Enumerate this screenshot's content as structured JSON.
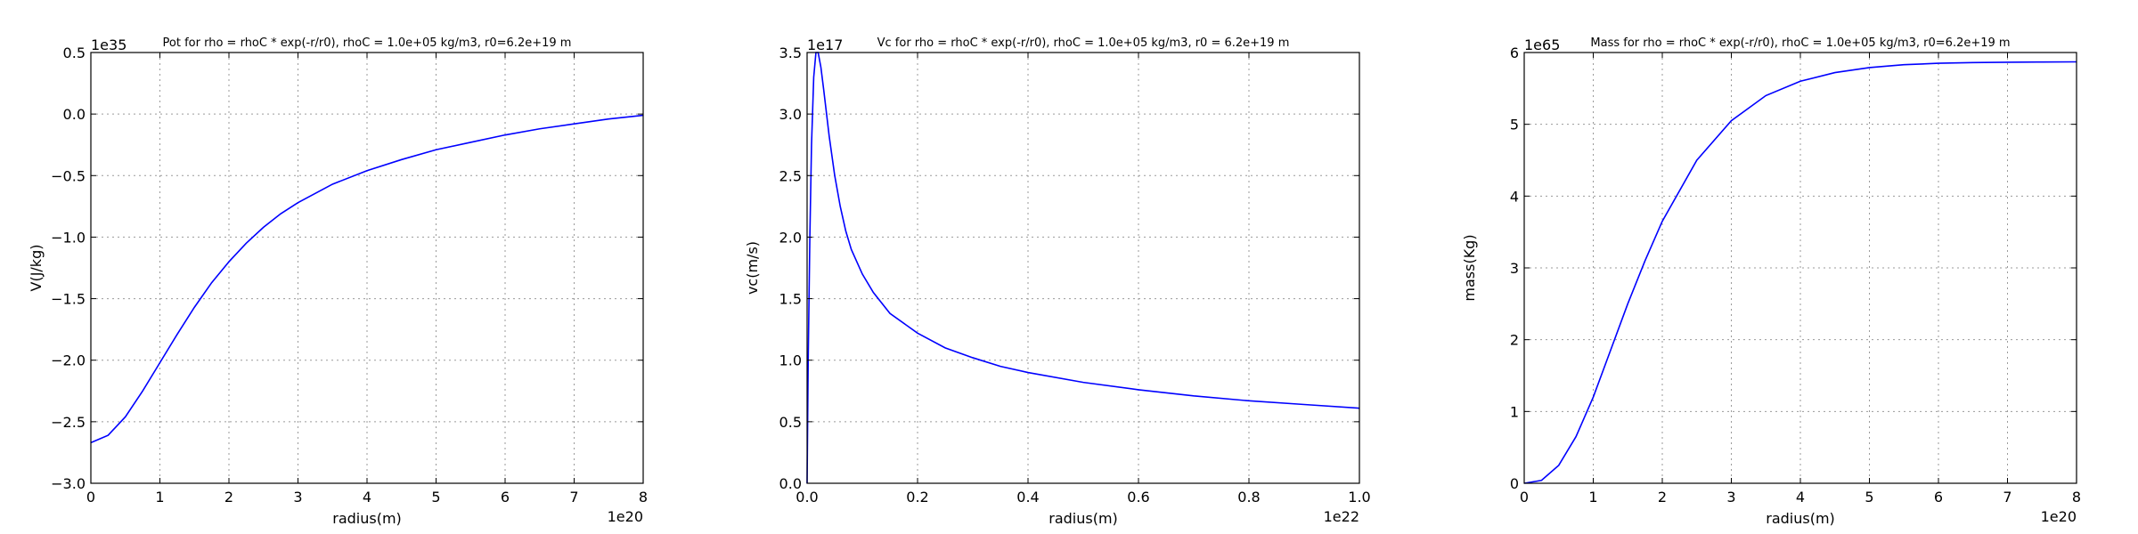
{
  "chart_data": [
    {
      "type": "line",
      "title": "Pot for rho = rhoC * exp(-r/r0), rhoC = 1.0e+05 kg/m3, r0=6.2e+19 m",
      "xlabel": "radius(m)",
      "ylabel": "V(J/kg)",
      "x_offset_label": "1e20",
      "y_offset_label": "1e35",
      "xlim": [
        0,
        8
      ],
      "ylim": [
        -3.0,
        0.5
      ],
      "xticks": [
        0,
        1,
        2,
        3,
        4,
        5,
        6,
        7,
        8
      ],
      "xtick_labels": [
        "0",
        "1",
        "2",
        "3",
        "4",
        "5",
        "6",
        "7",
        "8"
      ],
      "yticks": [
        -3.0,
        -2.5,
        -2.0,
        -1.5,
        -1.0,
        -0.5,
        0.0,
        0.5
      ],
      "ytick_labels": [
        "−3.0",
        "−2.5",
        "−2.0",
        "−1.5",
        "−1.0",
        "−0.5",
        "0.0",
        "0.5"
      ],
      "grid": true,
      "color": "#0000ff",
      "series": [
        {
          "x": [
            0,
            0.25,
            0.5,
            0.75,
            1.0,
            1.25,
            1.5,
            1.75,
            2.0,
            2.25,
            2.5,
            2.75,
            3.0,
            3.5,
            4.0,
            4.5,
            5.0,
            5.5,
            6.0,
            6.5,
            7.0,
            7.5,
            8.0
          ],
          "values": [
            -2.67,
            -2.61,
            -2.46,
            -2.25,
            -2.02,
            -1.79,
            -1.57,
            -1.37,
            -1.2,
            -1.05,
            -0.92,
            -0.81,
            -0.72,
            -0.57,
            -0.46,
            -0.37,
            -0.29,
            -0.23,
            -0.17,
            -0.12,
            -0.08,
            -0.04,
            -0.01
          ]
        }
      ]
    },
    {
      "type": "line",
      "title": "Vc for rho = rhoC * exp(-r/r0), rhoC = 1.0e+05 kg/m3, r0 = 6.2e+19 m",
      "xlabel": "radius(m)",
      "ylabel": "vc(m/s)",
      "x_offset_label": "1e22",
      "y_offset_label": "1e17",
      "xlim": [
        0,
        1.0
      ],
      "ylim": [
        0,
        3.5
      ],
      "xticks": [
        0,
        0.2,
        0.4,
        0.6,
        0.8,
        1.0
      ],
      "xtick_labels": [
        "0.0",
        "0.2",
        "0.4",
        "0.6",
        "0.8",
        "1.0"
      ],
      "yticks": [
        0,
        0.5,
        1.0,
        1.5,
        2.0,
        2.5,
        3.0,
        3.5
      ],
      "ytick_labels": [
        "0.0",
        "0.5",
        "1.0",
        "1.5",
        "2.0",
        "2.5",
        "3.0",
        "3.5"
      ],
      "grid": true,
      "color": "#0000ff",
      "series": [
        {
          "x": [
            0,
            0.002,
            0.005,
            0.008,
            0.012,
            0.016,
            0.02,
            0.025,
            0.03,
            0.04,
            0.05,
            0.06,
            0.07,
            0.08,
            0.1,
            0.12,
            0.15,
            0.2,
            0.25,
            0.3,
            0.35,
            0.4,
            0.5,
            0.6,
            0.7,
            0.8,
            0.9,
            1.0
          ],
          "values": [
            0,
            1.0,
            2.0,
            2.75,
            3.3,
            3.5,
            3.5,
            3.38,
            3.2,
            2.82,
            2.5,
            2.25,
            2.05,
            1.9,
            1.7,
            1.55,
            1.38,
            1.22,
            1.1,
            1.02,
            0.95,
            0.9,
            0.82,
            0.76,
            0.71,
            0.67,
            0.64,
            0.61
          ]
        }
      ]
    },
    {
      "type": "line",
      "title": "Mass for rho = rhoC * exp(-r/r0), rhoC = 1.0e+05 kg/m3, r0=6.2e+19 m",
      "xlabel": "radius(m)",
      "ylabel": "mass(Kg)",
      "x_offset_label": "1e20",
      "y_offset_label": "1e65",
      "xlim": [
        0,
        8
      ],
      "ylim": [
        0,
        6
      ],
      "xticks": [
        0,
        1,
        2,
        3,
        4,
        5,
        6,
        7,
        8
      ],
      "xtick_labels": [
        "0",
        "1",
        "2",
        "3",
        "4",
        "5",
        "6",
        "7",
        "8"
      ],
      "yticks": [
        0,
        1,
        2,
        3,
        4,
        5,
        6
      ],
      "ytick_labels": [
        "0",
        "1",
        "2",
        "3",
        "4",
        "5",
        "6"
      ],
      "grid": true,
      "color": "#0000ff",
      "series": [
        {
          "x": [
            0,
            0.25,
            0.5,
            0.75,
            1.0,
            1.25,
            1.5,
            1.75,
            2.0,
            2.5,
            3.0,
            3.5,
            4.0,
            4.5,
            5.0,
            5.5,
            6.0,
            6.5,
            7.0,
            7.5,
            8.0
          ],
          "values": [
            0,
            0.04,
            0.25,
            0.65,
            1.2,
            1.85,
            2.5,
            3.1,
            3.65,
            4.5,
            5.05,
            5.4,
            5.6,
            5.72,
            5.79,
            5.83,
            5.85,
            5.86,
            5.865,
            5.868,
            5.87
          ]
        }
      ]
    }
  ]
}
